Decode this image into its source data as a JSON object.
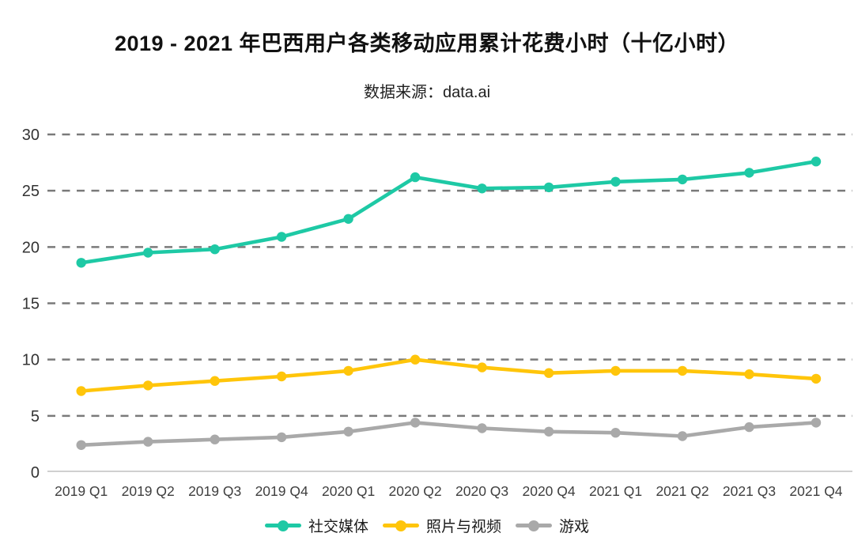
{
  "chart_data": {
    "type": "line",
    "title": "2019 - 2021 年巴西用户各类移动应用累计花费小时（十亿小时）",
    "subtitle": "数据来源：data.ai",
    "categories": [
      "2019 Q1",
      "2019 Q2",
      "2019 Q3",
      "2019 Q4",
      "2020 Q1",
      "2020 Q2",
      "2020 Q3",
      "2020 Q4",
      "2021 Q1",
      "2021 Q2",
      "2021 Q3",
      "2021 Q4"
    ],
    "series": [
      {
        "name": "社交媒体",
        "color": "#1EC9A5",
        "values": [
          18.6,
          19.5,
          19.8,
          20.9,
          22.5,
          26.2,
          25.2,
          25.3,
          25.8,
          26.0,
          26.6,
          27.6
        ]
      },
      {
        "name": "照片与视频",
        "color": "#FFC50A",
        "values": [
          7.2,
          7.7,
          8.1,
          8.5,
          9.0,
          10.0,
          9.3,
          8.8,
          9.0,
          9.0,
          8.7,
          8.3
        ]
      },
      {
        "name": "游戏",
        "color": "#A9A9A9",
        "values": [
          2.4,
          2.7,
          2.9,
          3.1,
          3.6,
          4.4,
          3.9,
          3.6,
          3.5,
          3.2,
          4.0,
          4.4
        ]
      }
    ],
    "ylim": [
      0,
      30
    ],
    "yticks": [
      0,
      5,
      10,
      15,
      20,
      25,
      30
    ],
    "grid": "horizontal-dashed",
    "legend_position": "bottom",
    "colors": {
      "gridline": "#7A7A7A",
      "axis_line": "#D0D0D0",
      "ytick_text": "#333333",
      "xtick_text": "#3F3F3F"
    }
  }
}
